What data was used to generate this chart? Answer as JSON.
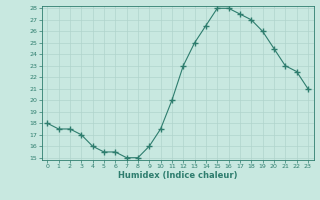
{
  "x": [
    0,
    1,
    2,
    3,
    4,
    5,
    6,
    7,
    8,
    9,
    10,
    11,
    12,
    13,
    14,
    15,
    16,
    17,
    18,
    19,
    20,
    21,
    22,
    23
  ],
  "y": [
    18.0,
    17.5,
    17.5,
    17.0,
    16.0,
    15.5,
    15.5,
    15.0,
    15.0,
    16.0,
    17.5,
    20.0,
    23.0,
    25.0,
    26.5,
    28.0,
    28.0,
    27.5,
    27.0,
    26.0,
    24.5,
    23.0,
    22.5,
    21.0
  ],
  "line_color": "#2e7d6e",
  "marker": "+",
  "marker_size": 4,
  "bg_color": "#c8e8e0",
  "grid_color": "#b0d4cc",
  "xlabel": "Humidex (Indice chaleur)",
  "ylim": [
    15,
    28
  ],
  "xlim": [
    -0.5,
    23.5
  ],
  "yticks": [
    15,
    16,
    17,
    18,
    19,
    20,
    21,
    22,
    23,
    24,
    25,
    26,
    27,
    28
  ],
  "xticks": [
    0,
    1,
    2,
    3,
    4,
    5,
    6,
    7,
    8,
    9,
    10,
    11,
    12,
    13,
    14,
    15,
    16,
    17,
    18,
    19,
    20,
    21,
    22,
    23
  ]
}
